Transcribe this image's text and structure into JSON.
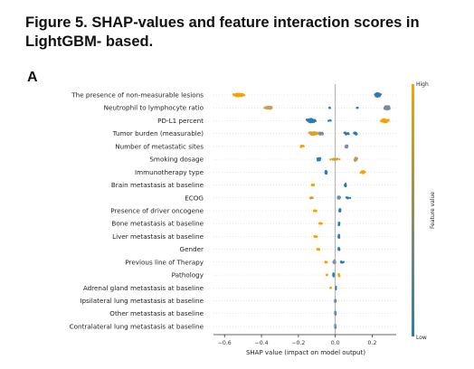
{
  "figure": {
    "title": "Figure 5. SHAP-values and feature interaction scores in LightGBM- based.",
    "panel_label": "A"
  },
  "chart_data": {
    "type": "scatter",
    "subtype": "shap-beeswarm",
    "xlabel": "SHAP value (impact on model output)",
    "xlim": [
      -0.66,
      0.33
    ],
    "xticks": [
      -0.6,
      -0.4,
      -0.2,
      0.0,
      0.2
    ],
    "xtick_labels": [
      "−0.6",
      "−0.4",
      "−0.2",
      "0.0",
      "0.2"
    ],
    "colorbar": {
      "label": "Feature value",
      "high": "High",
      "low": "Low",
      "low_color": "#2c7bb6",
      "high_color": "#f5a300"
    },
    "features": [
      {
        "name": "The presence of non-measurable lesions",
        "clusters": [
          {
            "center": -0.52,
            "spread": 0.04,
            "width": 0.35,
            "n": 60,
            "color": "#f5a300"
          },
          {
            "center": 0.23,
            "spread": 0.02,
            "width": 0.45,
            "n": 70,
            "color": "#2c7bb6"
          }
        ]
      },
      {
        "name": "Neutrophil to lymphocyte ratio",
        "clusters": [
          {
            "center": -0.36,
            "spread": 0.03,
            "width": 0.3,
            "n": 45,
            "color": "#c9a050"
          },
          {
            "center": -0.03,
            "spread": 0.01,
            "width": 0.08,
            "n": 4,
            "color": "#2c7bb6"
          },
          {
            "center": 0.12,
            "spread": 0.01,
            "width": 0.08,
            "n": 4,
            "color": "#2c7bb6"
          },
          {
            "center": 0.28,
            "spread": 0.02,
            "width": 0.45,
            "n": 60,
            "color": "#7a8ca0"
          }
        ]
      },
      {
        "name": "PD-L1 percent",
        "clusters": [
          {
            "center": -0.13,
            "spread": 0.03,
            "width": 0.45,
            "n": 55,
            "color": "#2c7bb6"
          },
          {
            "center": -0.03,
            "spread": 0.01,
            "width": 0.1,
            "n": 4,
            "color": "#2c7bb6"
          },
          {
            "center": 0.27,
            "spread": 0.03,
            "width": 0.4,
            "n": 50,
            "color": "#f5a300"
          }
        ]
      },
      {
        "name": "Tumor burden (measurable)",
        "clusters": [
          {
            "center": -0.12,
            "spread": 0.05,
            "width": 0.35,
            "n": 35,
            "color": "#e0a020"
          },
          {
            "center": -0.08,
            "spread": 0.02,
            "width": 0.3,
            "n": 15,
            "color": "#7a8ca0"
          },
          {
            "center": 0.06,
            "spread": 0.02,
            "width": 0.25,
            "n": 15,
            "color": "#2c7bb6"
          },
          {
            "center": 0.11,
            "spread": 0.01,
            "width": 0.4,
            "n": 20,
            "color": "#2c7bb6"
          }
        ]
      },
      {
        "name": "Number of metastatic sites",
        "clusters": [
          {
            "center": -0.18,
            "spread": 0.015,
            "width": 0.2,
            "n": 14,
            "color": "#f5a300"
          },
          {
            "center": 0.06,
            "spread": 0.01,
            "width": 0.35,
            "n": 18,
            "color": "#7a8ca0"
          }
        ]
      },
      {
        "name": "Smoking dosage",
        "clusters": [
          {
            "center": -0.09,
            "spread": 0.015,
            "width": 0.35,
            "n": 14,
            "color": "#2c7bb6"
          },
          {
            "center": 0.0,
            "spread": 0.03,
            "width": 0.2,
            "n": 14,
            "color": "#e0a020"
          },
          {
            "center": 0.11,
            "spread": 0.015,
            "width": 0.4,
            "n": 20,
            "color": "#b89a60"
          }
        ]
      },
      {
        "name": "Immunotherapy type",
        "clusters": [
          {
            "center": -0.05,
            "spread": 0.008,
            "width": 0.45,
            "n": 12,
            "color": "#2c7bb6"
          },
          {
            "center": 0.15,
            "spread": 0.015,
            "width": 0.3,
            "n": 18,
            "color": "#f5a300"
          }
        ]
      },
      {
        "name": "Brain metastasis at baseline",
        "clusters": [
          {
            "center": -0.12,
            "spread": 0.012,
            "width": 0.15,
            "n": 10,
            "color": "#f5a300"
          },
          {
            "center": 0.055,
            "spread": 0.006,
            "width": 0.45,
            "n": 14,
            "color": "#2c7bb6"
          }
        ]
      },
      {
        "name": "ECOG",
        "clusters": [
          {
            "center": -0.13,
            "spread": 0.015,
            "width": 0.12,
            "n": 12,
            "color": "#e09a20"
          },
          {
            "center": 0.02,
            "spread": 0.01,
            "width": 0.35,
            "n": 14,
            "color": "#7a8ca0"
          },
          {
            "center": 0.07,
            "spread": 0.015,
            "width": 0.2,
            "n": 8,
            "color": "#2c7bb6"
          }
        ]
      },
      {
        "name": "Presence of driver oncogene",
        "clusters": [
          {
            "center": -0.11,
            "spread": 0.012,
            "width": 0.15,
            "n": 10,
            "color": "#f5a300"
          },
          {
            "center": 0.025,
            "spread": 0.004,
            "width": 0.45,
            "n": 14,
            "color": "#2c7bb6"
          }
        ]
      },
      {
        "name": "Bone metastasis at baseline",
        "clusters": [
          {
            "center": -0.08,
            "spread": 0.012,
            "width": 0.18,
            "n": 10,
            "color": "#f5a300"
          },
          {
            "center": 0.02,
            "spread": 0.004,
            "width": 0.45,
            "n": 14,
            "color": "#2c7bb6"
          }
        ]
      },
      {
        "name": "Liver metastasis at baseline",
        "clusters": [
          {
            "center": -0.11,
            "spread": 0.012,
            "width": 0.15,
            "n": 10,
            "color": "#f5a300"
          },
          {
            "center": 0.02,
            "spread": 0.004,
            "width": 0.45,
            "n": 14,
            "color": "#2c7bb6"
          }
        ]
      },
      {
        "name": "Gender",
        "clusters": [
          {
            "center": -0.09,
            "spread": 0.018,
            "width": 0.15,
            "n": 12,
            "color": "#f5a300"
          },
          {
            "center": 0.02,
            "spread": 0.004,
            "width": 0.45,
            "n": 14,
            "color": "#2c7bb6"
          }
        ]
      },
      {
        "name": "Previous line of Therapy",
        "clusters": [
          {
            "center": -0.05,
            "spread": 0.01,
            "width": 0.15,
            "n": 6,
            "color": "#f5a300"
          },
          {
            "center": -0.005,
            "spread": 0.006,
            "width": 0.45,
            "n": 14,
            "color": "#7a8ca0"
          },
          {
            "center": 0.035,
            "spread": 0.012,
            "width": 0.2,
            "n": 8,
            "color": "#2c7bb6"
          }
        ]
      },
      {
        "name": "Pathology",
        "clusters": [
          {
            "center": -0.045,
            "spread": 0.006,
            "width": 0.1,
            "n": 5,
            "color": "#f5a300"
          },
          {
            "center": -0.01,
            "spread": 0.003,
            "width": 0.45,
            "n": 10,
            "color": "#2c7bb6"
          },
          {
            "center": 0.02,
            "spread": 0.004,
            "width": 0.4,
            "n": 8,
            "color": "#f5a300"
          }
        ]
      },
      {
        "name": "Adrenal gland metastasis at baseline",
        "clusters": [
          {
            "center": -0.025,
            "spread": 0.004,
            "width": 0.1,
            "n": 4,
            "color": "#f5a300"
          },
          {
            "center": 0.003,
            "spread": 0.002,
            "width": 0.4,
            "n": 8,
            "color": "#2c7bb6"
          }
        ]
      },
      {
        "name": "Ipsilateral lung metastasis at baseline",
        "clusters": [
          {
            "center": 0.0,
            "spread": 0.002,
            "width": 0.45,
            "n": 10,
            "color": "#2c7bb6"
          }
        ]
      },
      {
        "name": "Other metastasis at baseline",
        "clusters": [
          {
            "center": 0.0,
            "spread": 0.002,
            "width": 0.45,
            "n": 10,
            "color": "#2c7bb6"
          }
        ]
      },
      {
        "name": "Contralateral lung metastasis at baseline",
        "clusters": [
          {
            "center": 0.0,
            "spread": 0.002,
            "width": 0.45,
            "n": 10,
            "color": "#2c7bb6"
          }
        ]
      }
    ]
  }
}
